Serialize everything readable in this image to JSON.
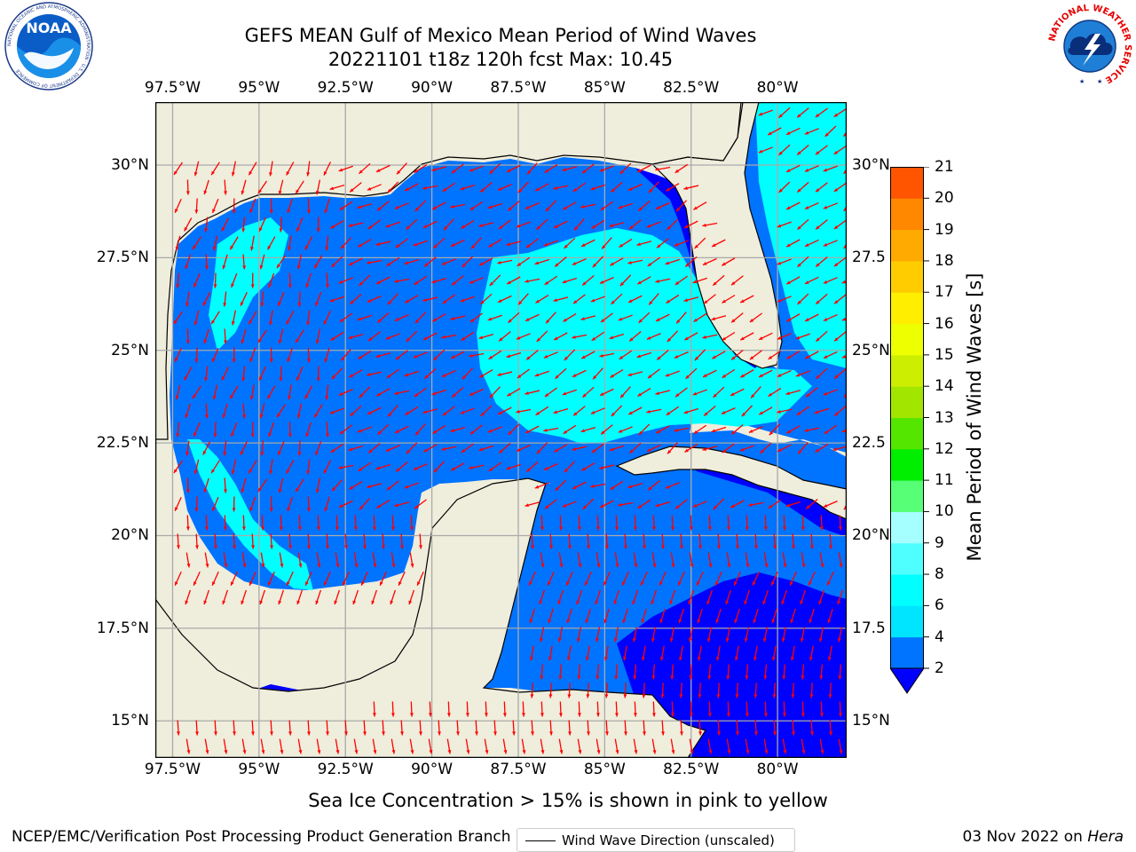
{
  "header": {
    "title_line1": "GEFS MEAN Gulf of Mexico Mean Period of Wind Waves",
    "title_line2": "20221101 t18z 120h fcst   Max: 10.45",
    "noaa_logo_text": "NOAA",
    "noaa_ring_text": "NATIONAL OCEANIC AND ATMOSPHERIC ADMINISTRATION · U.S. DEPARTMENT OF COMMERCE",
    "nws_ring_text": "NATIONAL WEATHER SERVICE"
  },
  "map": {
    "x_ticks": [
      "97.5°W",
      "95°W",
      "92.5°W",
      "90°W",
      "87.5°W",
      "85°W",
      "82.5°W",
      "80°W"
    ],
    "y_ticks_left": [
      "30°N",
      "27.5°N",
      "25°N",
      "22.5°N",
      "20°N",
      "17.5°N",
      "15°N"
    ],
    "y_ticks_right": [
      "30°N",
      "27.5",
      "25°N",
      "22.5",
      "20°N",
      "17.5",
      "15°N"
    ],
    "lon_range": [
      -98,
      -78
    ],
    "lat_range": [
      14,
      31.7
    ],
    "gridlines": true,
    "land_color": "#efeddc",
    "arrow_color": "#ff0000",
    "arrow_direction": "mostly toward the west and southwest",
    "legend": {
      "label": "Wind Wave Direction (unscaled)",
      "placement": "bottom-center"
    }
  },
  "colorbar": {
    "label": "Mean Period of Wind Waves [s]",
    "ticks": [
      "2",
      "4",
      "6",
      "8",
      "9",
      "10",
      "11",
      "12",
      "13",
      "14",
      "15",
      "16",
      "17",
      "18",
      "19",
      "20",
      "21"
    ],
    "levels": [
      2,
      4,
      6,
      8,
      9,
      10,
      11,
      12,
      13,
      14,
      15,
      16,
      17,
      18,
      19,
      20,
      21
    ],
    "colors": [
      "#0073ff",
      "#00e5ff",
      "#00ffff",
      "#4fffff",
      "#a6ffff",
      "#56ff76",
      "#00ee00",
      "#55e600",
      "#a2e600",
      "#ccee00",
      "#eeff00",
      "#ffee00",
      "#ffcc00",
      "#ffaa00",
      "#ff8800",
      "#ff5500",
      "#ff2200",
      "#ff0000"
    ],
    "under_color": "#0000ff"
  },
  "footer": {
    "subtitle": "Sea Ice Concentration > 15% is shown in pink to yellow",
    "left": "NCEP/EMC/Verification Post Processing Product Generation Branch",
    "right_date": "03 Nov 2022 on ",
    "right_machine": "Hera"
  }
}
